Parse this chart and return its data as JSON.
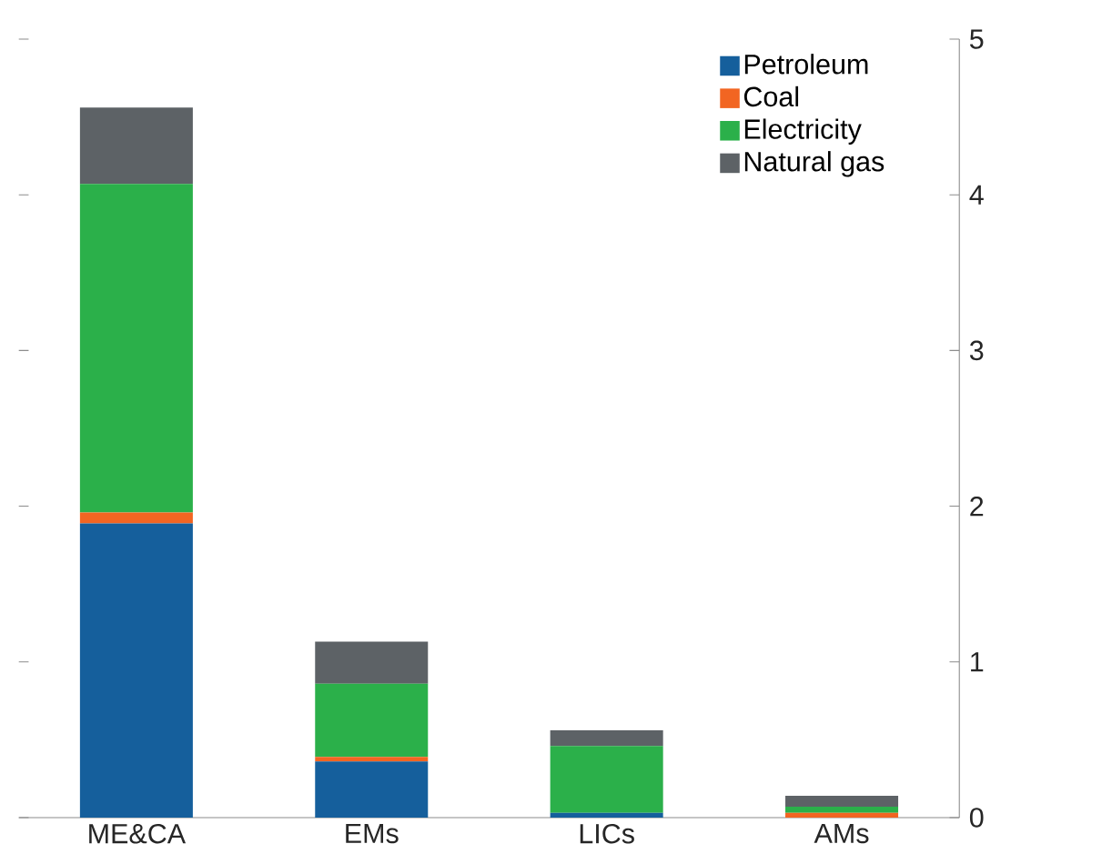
{
  "chart_data": {
    "type": "bar",
    "stacked": true,
    "categories": [
      "ME&CA",
      "EMs",
      "LICs",
      "AMs"
    ],
    "series": [
      {
        "name": "Petroleum",
        "color": "#155f9c",
        "values": [
          1.89,
          0.36,
          0.03,
          0
        ]
      },
      {
        "name": "Coal",
        "color": "#f26522",
        "values": [
          0.07,
          0.03,
          0,
          0.03
        ]
      },
      {
        "name": "Electricity",
        "color": "#2bb04a",
        "values": [
          2.11,
          0.47,
          0.43,
          0.04
        ]
      },
      {
        "name": "Natural gas",
        "color": "#5d6266",
        "values": [
          0.49,
          0.27,
          0.1,
          0.07
        ]
      }
    ],
    "ylim": [
      0,
      5
    ],
    "yticks": [
      0,
      1,
      2,
      3,
      4,
      5
    ],
    "legend": "top right",
    "grid": false
  }
}
